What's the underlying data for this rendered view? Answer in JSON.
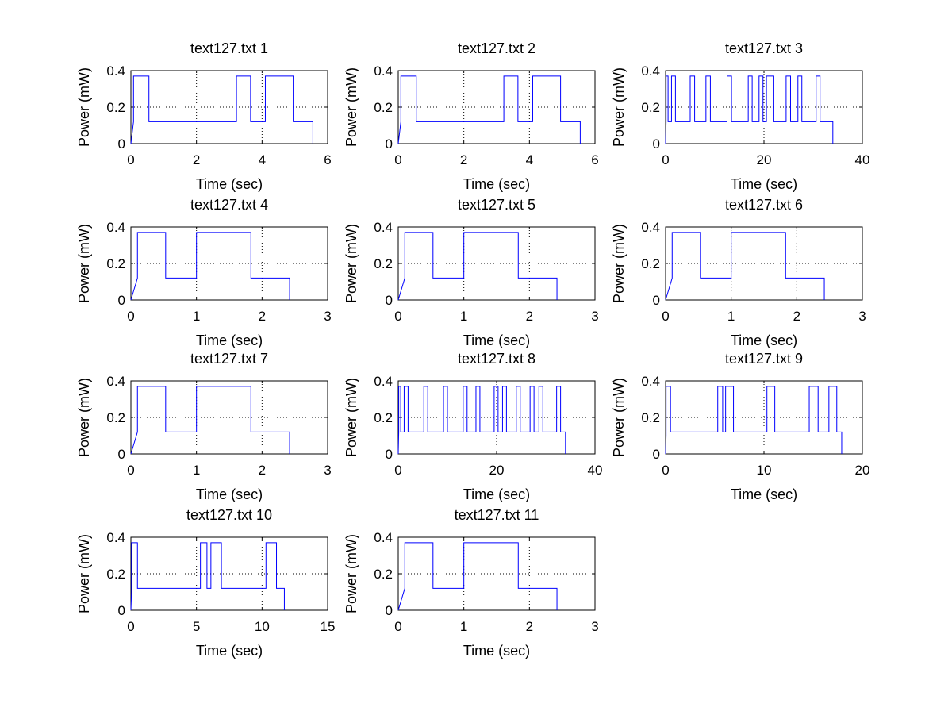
{
  "figure": {
    "series_color": "#0000ff"
  },
  "chart_data": [
    {
      "type": "line",
      "title": "text127.txt 1",
      "xlabel": "Time (sec)",
      "ylabel": "Power (mW)",
      "xlim": [
        0,
        6
      ],
      "ylim": [
        0,
        0.4
      ],
      "xticks": [
        0,
        2,
        4,
        6
      ],
      "yticks": [
        0,
        0.2,
        0.4
      ],
      "xtick_labels": [
        "0",
        "2",
        "4",
        "6"
      ],
      "ytick_labels": [
        "0",
        "0.2",
        "0.4"
      ],
      "grid": true,
      "series": [
        {
          "x": [
            0,
            0.08,
            0.08,
            0.55,
            0.55,
            3.22,
            3.22,
            3.65,
            3.65,
            4.1,
            4.1,
            4.95,
            4.95,
            5.55,
            5.55
          ],
          "y": [
            0,
            0.12,
            0.37,
            0.37,
            0.12,
            0.12,
            0.37,
            0.37,
            0.12,
            0.12,
            0.37,
            0.37,
            0.12,
            0.12,
            0
          ]
        }
      ]
    },
    {
      "type": "line",
      "title": "text127.txt 2",
      "xlabel": "Time (sec)",
      "ylabel": "Power (mW)",
      "xlim": [
        0,
        6
      ],
      "ylim": [
        0,
        0.4
      ],
      "xticks": [
        0,
        2,
        4,
        6
      ],
      "yticks": [
        0,
        0.2,
        0.4
      ],
      "xtick_labels": [
        "0",
        "2",
        "4",
        "6"
      ],
      "ytick_labels": [
        "0",
        "0.2",
        "0.4"
      ],
      "grid": true,
      "series": [
        {
          "x": [
            0,
            0.08,
            0.08,
            0.55,
            0.55,
            3.22,
            3.22,
            3.65,
            3.65,
            4.1,
            4.1,
            4.95,
            4.95,
            5.55,
            5.55
          ],
          "y": [
            0,
            0.12,
            0.37,
            0.37,
            0.12,
            0.12,
            0.37,
            0.37,
            0.12,
            0.12,
            0.37,
            0.37,
            0.12,
            0.12,
            0
          ]
        }
      ]
    },
    {
      "type": "line",
      "title": "text127.txt 3",
      "xlabel": "Time (sec)",
      "ylabel": "Power (mW)",
      "xlim": [
        0,
        40
      ],
      "ylim": [
        0,
        0.4
      ],
      "xticks": [
        0,
        20,
        40
      ],
      "yticks": [
        0,
        0.2,
        0.4
      ],
      "xtick_labels": [
        "0",
        "20",
        "40"
      ],
      "ytick_labels": [
        "0",
        "0.2",
        "0.4"
      ],
      "grid": true,
      "series": [
        {
          "x": [
            0,
            0.1,
            0.1,
            0.5,
            0.5,
            1.2,
            1.2,
            2.0,
            2.0,
            5.0,
            5.0,
            5.9,
            5.9,
            8.2,
            8.2,
            9.1,
            9.1,
            12.5,
            12.5,
            13.4,
            13.4,
            16.8,
            16.8,
            17.6,
            17.6,
            19.0,
            19.0,
            19.8,
            19.8,
            20.5,
            20.5,
            22.0,
            22.0,
            24.5,
            24.5,
            25.4,
            25.4,
            26.9,
            26.9,
            27.7,
            27.7,
            30.6,
            30.6,
            31.4,
            31.4,
            34.0,
            34.0
          ],
          "y": [
            0,
            0.12,
            0.37,
            0.37,
            0.12,
            0.12,
            0.37,
            0.37,
            0.12,
            0.12,
            0.37,
            0.37,
            0.12,
            0.12,
            0.37,
            0.37,
            0.12,
            0.12,
            0.37,
            0.37,
            0.12,
            0.12,
            0.37,
            0.37,
            0.12,
            0.12,
            0.37,
            0.37,
            0.12,
            0.12,
            0.37,
            0.37,
            0.12,
            0.12,
            0.37,
            0.37,
            0.12,
            0.12,
            0.37,
            0.37,
            0.12,
            0.12,
            0.37,
            0.37,
            0.12,
            0.12,
            0
          ]
        }
      ]
    },
    {
      "type": "line",
      "title": "text127.txt 4",
      "xlabel": "Time (sec)",
      "ylabel": "Power (mW)",
      "xlim": [
        0,
        3
      ],
      "ylim": [
        0,
        0.4
      ],
      "xticks": [
        0,
        1,
        2,
        3
      ],
      "yticks": [
        0,
        0.2,
        0.4
      ],
      "xtick_labels": [
        "0",
        "1",
        "2",
        "3"
      ],
      "ytick_labels": [
        "0",
        "0.2",
        "0.4"
      ],
      "grid": true,
      "series": [
        {
          "x": [
            0,
            0.1,
            0.1,
            0.53,
            0.53,
            1.0,
            1.0,
            1.83,
            1.83,
            2.42,
            2.42
          ],
          "y": [
            0,
            0.12,
            0.37,
            0.37,
            0.12,
            0.12,
            0.37,
            0.37,
            0.12,
            0.12,
            0
          ]
        }
      ]
    },
    {
      "type": "line",
      "title": "text127.txt 5",
      "xlabel": "Time (sec)",
      "ylabel": "Power (mW)",
      "xlim": [
        0,
        3
      ],
      "ylim": [
        0,
        0.4
      ],
      "xticks": [
        0,
        1,
        2,
        3
      ],
      "yticks": [
        0,
        0.2,
        0.4
      ],
      "xtick_labels": [
        "0",
        "1",
        "2",
        "3"
      ],
      "ytick_labels": [
        "0",
        "0.2",
        "0.4"
      ],
      "grid": true,
      "series": [
        {
          "x": [
            0,
            0.1,
            0.1,
            0.53,
            0.53,
            1.0,
            1.0,
            1.83,
            1.83,
            2.42,
            2.42
          ],
          "y": [
            0,
            0.12,
            0.37,
            0.37,
            0.12,
            0.12,
            0.37,
            0.37,
            0.12,
            0.12,
            0
          ]
        }
      ]
    },
    {
      "type": "line",
      "title": "text127.txt 6",
      "xlabel": "Time (sec)",
      "ylabel": "Power (mW)",
      "xlim": [
        0,
        3
      ],
      "ylim": [
        0,
        0.4
      ],
      "xticks": [
        0,
        1,
        2,
        3
      ],
      "yticks": [
        0,
        0.2,
        0.4
      ],
      "xtick_labels": [
        "0",
        "1",
        "2",
        "3"
      ],
      "ytick_labels": [
        "0",
        "0.2",
        "0.4"
      ],
      "grid": true,
      "series": [
        {
          "x": [
            0,
            0.1,
            0.1,
            0.53,
            0.53,
            1.0,
            1.0,
            1.83,
            1.83,
            2.42,
            2.42
          ],
          "y": [
            0,
            0.12,
            0.37,
            0.37,
            0.12,
            0.12,
            0.37,
            0.37,
            0.12,
            0.12,
            0
          ]
        }
      ]
    },
    {
      "type": "line",
      "title": "text127.txt 7",
      "xlabel": "Time (sec)",
      "ylabel": "Power (mW)",
      "xlim": [
        0,
        3
      ],
      "ylim": [
        0,
        0.4
      ],
      "xticks": [
        0,
        1,
        2,
        3
      ],
      "yticks": [
        0,
        0.2,
        0.4
      ],
      "xtick_labels": [
        "0",
        "1",
        "2",
        "3"
      ],
      "ytick_labels": [
        "0",
        "0.2",
        "0.4"
      ],
      "grid": true,
      "series": [
        {
          "x": [
            0,
            0.1,
            0.1,
            0.53,
            0.53,
            1.0,
            1.0,
            1.83,
            1.83,
            2.42,
            2.42
          ],
          "y": [
            0,
            0.12,
            0.37,
            0.37,
            0.12,
            0.12,
            0.37,
            0.37,
            0.12,
            0.12,
            0
          ]
        }
      ]
    },
    {
      "type": "line",
      "title": "text127.txt 8",
      "xlabel": "Time (sec)",
      "ylabel": "Power (mW)",
      "xlim": [
        0,
        40
      ],
      "ylim": [
        0,
        0.4
      ],
      "xticks": [
        0,
        20,
        40
      ],
      "yticks": [
        0,
        0.2,
        0.4
      ],
      "xtick_labels": [
        "0",
        "20",
        "40"
      ],
      "ytick_labels": [
        "0",
        "0.2",
        "0.4"
      ],
      "grid": true,
      "series": [
        {
          "x": [
            0,
            0.1,
            0.1,
            0.5,
            0.5,
            1.2,
            1.2,
            2.0,
            2.0,
            5.2,
            5.2,
            6.0,
            6.0,
            9.2,
            9.2,
            10.0,
            10.0,
            13.2,
            13.2,
            14.0,
            14.0,
            15.8,
            15.8,
            16.6,
            16.6,
            19.5,
            19.5,
            20.3,
            20.3,
            21.2,
            21.2,
            22.0,
            22.0,
            24.0,
            24.0,
            24.8,
            24.8,
            26.8,
            26.8,
            27.6,
            27.6,
            28.6,
            28.6,
            29.4,
            29.4,
            32.2,
            32.2,
            33.0,
            33.0,
            34.0,
            34.0
          ],
          "y": [
            0,
            0.12,
            0.37,
            0.37,
            0.12,
            0.12,
            0.37,
            0.37,
            0.12,
            0.12,
            0.37,
            0.37,
            0.12,
            0.12,
            0.37,
            0.37,
            0.12,
            0.12,
            0.37,
            0.37,
            0.12,
            0.12,
            0.37,
            0.37,
            0.12,
            0.12,
            0.37,
            0.37,
            0.12,
            0.12,
            0.37,
            0.37,
            0.12,
            0.12,
            0.37,
            0.37,
            0.12,
            0.12,
            0.37,
            0.37,
            0.12,
            0.12,
            0.37,
            0.37,
            0.12,
            0.12,
            0.37,
            0.37,
            0.12,
            0.12,
            0
          ]
        }
      ]
    },
    {
      "type": "line",
      "title": "text127.txt 9",
      "xlabel": "Time (sec)",
      "ylabel": "Power (mW)",
      "xlim": [
        0,
        20
      ],
      "ylim": [
        0,
        0.4
      ],
      "xticks": [
        0,
        10,
        20
      ],
      "yticks": [
        0,
        0.2,
        0.4
      ],
      "xtick_labels": [
        "0",
        "10",
        "20"
      ],
      "ytick_labels": [
        "0",
        "0.2",
        "0.4"
      ],
      "grid": true,
      "series": [
        {
          "x": [
            0,
            0.05,
            0.05,
            0.5,
            0.5,
            5.3,
            5.3,
            5.8,
            5.8,
            6.1,
            6.1,
            6.9,
            6.9,
            10.3,
            10.3,
            11.1,
            11.1,
            14.6,
            14.6,
            15.5,
            15.5,
            16.6,
            16.6,
            17.4,
            17.4,
            17.9,
            17.9
          ],
          "y": [
            0,
            0.1,
            0.37,
            0.37,
            0.12,
            0.12,
            0.37,
            0.37,
            0.12,
            0.12,
            0.37,
            0.37,
            0.12,
            0.12,
            0.37,
            0.37,
            0.12,
            0.12,
            0.37,
            0.37,
            0.12,
            0.12,
            0.37,
            0.37,
            0.12,
            0.12,
            0
          ]
        }
      ]
    },
    {
      "type": "line",
      "title": "text127.txt 10",
      "xlabel": "Time (sec)",
      "ylabel": "Power (mW)",
      "xlim": [
        0,
        15
      ],
      "ylim": [
        0,
        0.4
      ],
      "xticks": [
        0,
        5,
        10,
        15
      ],
      "yticks": [
        0,
        0.2,
        0.4
      ],
      "xtick_labels": [
        "0",
        "5",
        "10",
        "15"
      ],
      "ytick_labels": [
        "0",
        "0.2",
        "0.4"
      ],
      "grid": true,
      "series": [
        {
          "x": [
            0,
            0.05,
            0.05,
            0.5,
            0.5,
            5.3,
            5.3,
            5.8,
            5.8,
            6.1,
            6.1,
            6.9,
            6.9,
            10.3,
            10.3,
            11.1,
            11.1,
            11.7,
            11.7
          ],
          "y": [
            0,
            0.1,
            0.37,
            0.37,
            0.12,
            0.12,
            0.37,
            0.37,
            0.12,
            0.12,
            0.37,
            0.37,
            0.12,
            0.12,
            0.37,
            0.37,
            0.12,
            0.12,
            0
          ]
        }
      ]
    },
    {
      "type": "line",
      "title": "text127.txt 11",
      "xlabel": "Time (sec)",
      "ylabel": "Power (mW)",
      "xlim": [
        0,
        3
      ],
      "ylim": [
        0,
        0.4
      ],
      "xticks": [
        0,
        1,
        2,
        3
      ],
      "yticks": [
        0,
        0.2,
        0.4
      ],
      "xtick_labels": [
        "0",
        "1",
        "2",
        "3"
      ],
      "ytick_labels": [
        "0",
        "0.2",
        "0.4"
      ],
      "grid": true,
      "series": [
        {
          "x": [
            0,
            0.1,
            0.1,
            0.53,
            0.53,
            1.0,
            1.0,
            1.83,
            1.83,
            2.42,
            2.42
          ],
          "y": [
            0,
            0.12,
            0.37,
            0.37,
            0.12,
            0.12,
            0.37,
            0.37,
            0.12,
            0.12,
            0
          ]
        }
      ]
    }
  ]
}
